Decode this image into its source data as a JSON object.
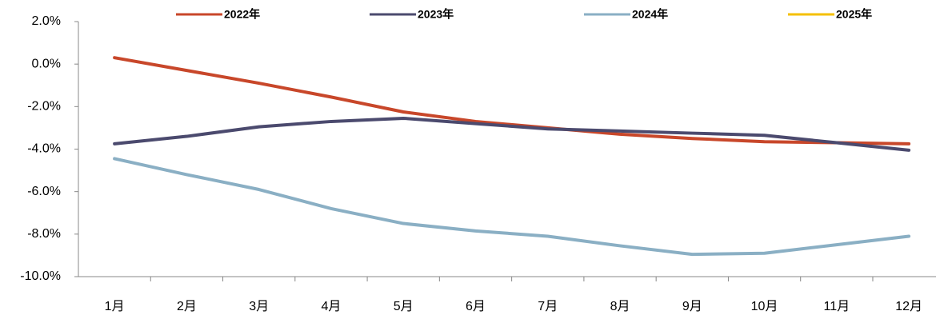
{
  "chart_data": {
    "type": "line",
    "categories": [
      "1月",
      "2月",
      "3月",
      "4月",
      "5月",
      "6月",
      "7月",
      "8月",
      "9月",
      "10月",
      "11月",
      "12月"
    ],
    "series": [
      {
        "name": "2022年",
        "color": "#c8472a",
        "values": [
          0.3,
          -0.3,
          -0.9,
          -1.55,
          -2.25,
          -2.7,
          -3.0,
          -3.3,
          -3.5,
          -3.65,
          -3.7,
          -3.75
        ]
      },
      {
        "name": "2023年",
        "color": "#4b4a6e",
        "values": [
          -3.75,
          -3.4,
          -2.95,
          -2.7,
          -2.55,
          -2.8,
          -3.05,
          -3.15,
          -3.25,
          -3.35,
          -3.7,
          -4.05
        ]
      },
      {
        "name": "2024年",
        "color": "#8aafc4",
        "values": [
          -4.45,
          -5.2,
          -5.9,
          -6.8,
          -7.5,
          -7.85,
          -8.1,
          -8.55,
          -8.95,
          -8.9,
          -8.5,
          -8.1
        ]
      },
      {
        "name": "2025年",
        "color": "#f5c000",
        "values": [
          null,
          null,
          null,
          null,
          null,
          null,
          null,
          null,
          null,
          null,
          null,
          null
        ]
      }
    ],
    "ylim": [
      -10,
      2
    ],
    "yticks": [
      {
        "value": 2,
        "label": "2.0%"
      },
      {
        "value": 0,
        "label": "0.0%"
      },
      {
        "value": -2,
        "label": "-2.0%"
      },
      {
        "value": -4,
        "label": "-4.0%"
      },
      {
        "value": -6,
        "label": "-6.0%"
      },
      {
        "value": -8,
        "label": "-8.0%"
      },
      {
        "value": -10,
        "label": "-10.0%"
      }
    ],
    "grid": false,
    "legend": "top"
  }
}
